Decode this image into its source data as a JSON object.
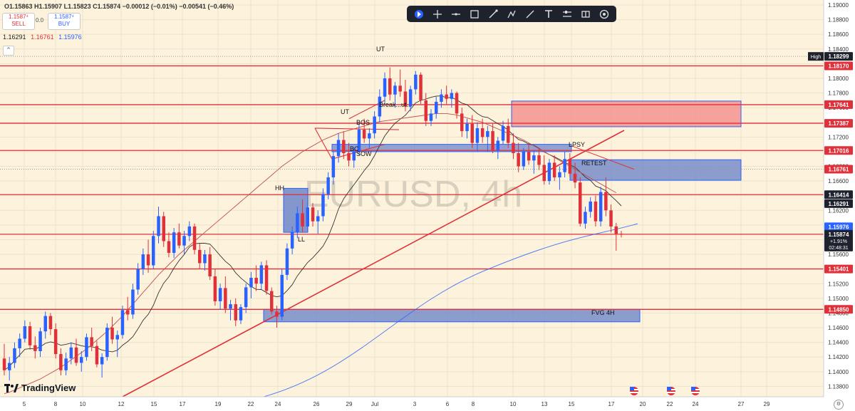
{
  "header": {
    "symbol_price": "1.1587⁴",
    "ohlc": "O1.15863 H1.15907 L1.15823 C1.15874 −0.00012 (−0.01%) −0.00541 (−0.46%)",
    "sell_price": "1.1587⁴",
    "sell_label": "SELL",
    "spread": "0.0",
    "buy_price": "1.1587⁴",
    "buy_label": "BUY",
    "ma_values": [
      "1.16291",
      "1.16761",
      "1.15976"
    ],
    "ma_colors": [
      "#222222",
      "#e0303a",
      "#2962ff"
    ],
    "collapse_glyph": "⌃"
  },
  "toolbar": {
    "icons": [
      "cursor-icon",
      "crosshair-icon",
      "horizontal-line-icon",
      "rectangle-icon",
      "brush-icon",
      "pen-icon",
      "trend-line-icon",
      "text-icon",
      "long-position-icon",
      "price-range-icon",
      "settings-icon"
    ]
  },
  "watermark": "EURUSD, 4h",
  "logo_text": "TradingView",
  "colors": {
    "background": "#fdf3dc",
    "bull": "#2962ff",
    "bear": "#e0303a",
    "level_line": "#e0303a",
    "zone_blue": "#6f86c9",
    "zone_red": "#f28c8c"
  },
  "chart_data": {
    "type": "candlestick",
    "symbol": "EURUSD",
    "timeframe": "4h",
    "ylim": [
      1.136,
      1.19
    ],
    "y_ticks": [
      "1.19000",
      "1.18800",
      "1.18600",
      "1.18400",
      "1.18200",
      "1.18000",
      "1.17800",
      "1.17600",
      "1.17400",
      "1.17200",
      "1.17000",
      "1.16800",
      "1.16600",
      "1.16400",
      "1.16200",
      "1.16000",
      "1.15800",
      "1.15600",
      "1.15400",
      "1.15200",
      "1.15000",
      "1.14800",
      "1.14600",
      "1.14400",
      "1.14200",
      "1.14000",
      "1.13800"
    ],
    "x_ticks": [
      "5",
      "8",
      "10",
      "12",
      "15",
      "17",
      "19",
      "22",
      "24",
      "26",
      "29",
      "Jul",
      "3",
      "6",
      "8",
      "10",
      "13",
      "15",
      "17",
      "20",
      "22",
      "24",
      "27",
      "29"
    ],
    "price_labels": [
      {
        "label": "High",
        "value": "1.18299"
      },
      {
        "value": "1.18170"
      },
      {
        "value": "1.17641"
      },
      {
        "value": "1.17387"
      },
      {
        "value": "1.17016"
      },
      {
        "value": "1.16761"
      },
      {
        "value": "1.16414"
      },
      {
        "value": "1.16291"
      },
      {
        "value": "1.15976"
      },
      {
        "value": "1.15874",
        "sub": [
          "+1.91%",
          "02:48:31"
        ]
      },
      {
        "value": "1.15401"
      },
      {
        "value": "1.14850"
      }
    ],
    "horizontal_levels": [
      1.1817,
      1.17641,
      1.17387,
      1.17016,
      1.16414,
      1.15874,
      1.15401,
      1.1485
    ],
    "dotted_levels": [
      1.18299,
      1.16761
    ],
    "annotations": [
      "UT",
      "Break...ut...",
      "UT",
      "BOS",
      "BC",
      "SOW",
      "HH",
      "LL",
      "LPSY",
      "RETEST",
      "FVG 4H"
    ],
    "ohlc": [
      [
        1.1418,
        1.1438,
        1.1395,
        1.1402
      ],
      [
        1.1402,
        1.142,
        1.1388,
        1.1412
      ],
      [
        1.1412,
        1.144,
        1.1405,
        1.1432
      ],
      [
        1.1432,
        1.1452,
        1.142,
        1.1445
      ],
      [
        1.1445,
        1.147,
        1.144,
        1.1462
      ],
      [
        1.1462,
        1.1468,
        1.143,
        1.1436
      ],
      [
        1.1436,
        1.1448,
        1.1418,
        1.1428
      ],
      [
        1.1428,
        1.146,
        1.142,
        1.1455
      ],
      [
        1.1455,
        1.1482,
        1.1445,
        1.1476
      ],
      [
        1.1476,
        1.148,
        1.145,
        1.1458
      ],
      [
        1.1458,
        1.1466,
        1.1418,
        1.1424
      ],
      [
        1.1424,
        1.1432,
        1.1395,
        1.1402
      ],
      [
        1.1402,
        1.1426,
        1.1395,
        1.1418
      ],
      [
        1.1418,
        1.144,
        1.141,
        1.1433
      ],
      [
        1.1433,
        1.1445,
        1.1408,
        1.1412
      ],
      [
        1.1412,
        1.1428,
        1.14,
        1.142
      ],
      [
        1.142,
        1.1452,
        1.1415,
        1.1447
      ],
      [
        1.1447,
        1.146,
        1.1428,
        1.1435
      ],
      [
        1.1435,
        1.1442,
        1.1406,
        1.141
      ],
      [
        1.141,
        1.1425,
        1.1392,
        1.142
      ],
      [
        1.142,
        1.1466,
        1.1415,
        1.146
      ],
      [
        1.146,
        1.1475,
        1.1438,
        1.1444
      ],
      [
        1.1444,
        1.1456,
        1.142,
        1.145
      ],
      [
        1.145,
        1.149,
        1.1445,
        1.1484
      ],
      [
        1.1484,
        1.1502,
        1.147,
        1.1478
      ],
      [
        1.1478,
        1.152,
        1.1472,
        1.1512
      ],
      [
        1.1512,
        1.1548,
        1.1505,
        1.154
      ],
      [
        1.154,
        1.1568,
        1.1532,
        1.156
      ],
      [
        1.156,
        1.158,
        1.1535,
        1.1545
      ],
      [
        1.1545,
        1.1592,
        1.154,
        1.1585
      ],
      [
        1.1585,
        1.1625,
        1.1575,
        1.1612
      ],
      [
        1.1612,
        1.1618,
        1.157,
        1.1578
      ],
      [
        1.1578,
        1.159,
        1.1556,
        1.1562
      ],
      [
        1.1562,
        1.1596,
        1.1555,
        1.159
      ],
      [
        1.159,
        1.1602,
        1.1568,
        1.1572
      ],
      [
        1.1572,
        1.1592,
        1.156,
        1.1585
      ],
      [
        1.1585,
        1.1605,
        1.1578,
        1.1598
      ],
      [
        1.1598,
        1.1602,
        1.156,
        1.1566
      ],
      [
        1.1566,
        1.1575,
        1.154,
        1.1548
      ],
      [
        1.1548,
        1.1566,
        1.1538,
        1.156
      ],
      [
        1.156,
        1.157,
        1.1525,
        1.153
      ],
      [
        1.153,
        1.154,
        1.149,
        1.1496
      ],
      [
        1.1496,
        1.152,
        1.1485,
        1.1514
      ],
      [
        1.1514,
        1.153,
        1.148,
        1.1486
      ],
      [
        1.1486,
        1.1498,
        1.147,
        1.1492
      ],
      [
        1.1492,
        1.15,
        1.1462,
        1.147
      ],
      [
        1.147,
        1.1492,
        1.1465,
        1.1488
      ],
      [
        1.1488,
        1.152,
        1.148,
        1.1515
      ],
      [
        1.1515,
        1.1536,
        1.15,
        1.1528
      ],
      [
        1.1528,
        1.1545,
        1.151,
        1.152
      ],
      [
        1.152,
        1.155,
        1.1512,
        1.1545
      ],
      [
        1.1545,
        1.1552,
        1.1505,
        1.151
      ],
      [
        1.151,
        1.1515,
        1.1478,
        1.1482
      ],
      [
        1.1482,
        1.149,
        1.146,
        1.1475
      ],
      [
        1.1475,
        1.154,
        1.147,
        1.1532
      ],
      [
        1.1532,
        1.1575,
        1.1525,
        1.1568
      ],
      [
        1.1568,
        1.1598,
        1.156,
        1.159
      ],
      [
        1.159,
        1.1625,
        1.1582,
        1.1616
      ],
      [
        1.1616,
        1.1635,
        1.159,
        1.1598
      ],
      [
        1.1598,
        1.1632,
        1.1592,
        1.1624
      ],
      [
        1.1624,
        1.163,
        1.1598,
        1.1605
      ],
      [
        1.1605,
        1.162,
        1.1588,
        1.1612
      ],
      [
        1.1612,
        1.165,
        1.1605,
        1.1642
      ],
      [
        1.1642,
        1.1672,
        1.1635,
        1.1665
      ],
      [
        1.1665,
        1.17,
        1.1655,
        1.1694
      ],
      [
        1.1694,
        1.1725,
        1.1685,
        1.1716
      ],
      [
        1.1716,
        1.1728,
        1.169,
        1.1698
      ],
      [
        1.1698,
        1.1712,
        1.168,
        1.1688
      ],
      [
        1.1688,
        1.1705,
        1.1678,
        1.17
      ],
      [
        1.17,
        1.1738,
        1.1695,
        1.173
      ],
      [
        1.173,
        1.1745,
        1.1712,
        1.1718
      ],
      [
        1.1718,
        1.1732,
        1.1705,
        1.1725
      ],
      [
        1.1725,
        1.1755,
        1.1718,
        1.1748
      ],
      [
        1.1748,
        1.1785,
        1.174,
        1.1775
      ],
      [
        1.1775,
        1.1808,
        1.1765,
        1.18
      ],
      [
        1.18,
        1.1815,
        1.177,
        1.1778
      ],
      [
        1.1778,
        1.1795,
        1.176,
        1.179
      ],
      [
        1.179,
        1.1812,
        1.1775,
        1.1782
      ],
      [
        1.1782,
        1.1798,
        1.1755,
        1.1762
      ],
      [
        1.1762,
        1.179,
        1.1755,
        1.1785
      ],
      [
        1.1785,
        1.181,
        1.1778,
        1.1805
      ],
      [
        1.1805,
        1.1808,
        1.1765,
        1.177
      ],
      [
        1.177,
        1.178,
        1.1735,
        1.1742
      ],
      [
        1.1742,
        1.1758,
        1.1735,
        1.1752
      ],
      [
        1.1752,
        1.1775,
        1.1745,
        1.1768
      ],
      [
        1.1768,
        1.1785,
        1.176,
        1.1778
      ],
      [
        1.1778,
        1.179,
        1.1765,
        1.1772
      ],
      [
        1.1772,
        1.1785,
        1.176,
        1.178
      ],
      [
        1.178,
        1.1782,
        1.1745,
        1.1752
      ],
      [
        1.1752,
        1.176,
        1.172,
        1.1728
      ],
      [
        1.1728,
        1.1745,
        1.1718,
        1.1738
      ],
      [
        1.1738,
        1.175,
        1.1705,
        1.1712
      ],
      [
        1.1712,
        1.174,
        1.17,
        1.1732
      ],
      [
        1.1732,
        1.1745,
        1.1712,
        1.172
      ],
      [
        1.172,
        1.1735,
        1.17,
        1.1728
      ],
      [
        1.1728,
        1.1738,
        1.1698,
        1.1702
      ],
      [
        1.1702,
        1.172,
        1.169,
        1.1715
      ],
      [
        1.1715,
        1.1742,
        1.171,
        1.1735
      ],
      [
        1.1735,
        1.1745,
        1.1705,
        1.1712
      ],
      [
        1.1712,
        1.1725,
        1.169,
        1.1698
      ],
      [
        1.1698,
        1.1712,
        1.1672,
        1.168
      ],
      [
        1.168,
        1.1705,
        1.1675,
        1.17
      ],
      [
        1.17,
        1.1712,
        1.1682,
        1.1688
      ],
      [
        1.1688,
        1.1702,
        1.167,
        1.1695
      ],
      [
        1.1695,
        1.1705,
        1.1675,
        1.1682
      ],
      [
        1.1682,
        1.1695,
        1.1655,
        1.166
      ],
      [
        1.166,
        1.169,
        1.1655,
        1.1685
      ],
      [
        1.1685,
        1.1695,
        1.166,
        1.1665
      ],
      [
        1.1665,
        1.168,
        1.1648,
        1.1672
      ],
      [
        1.1672,
        1.17,
        1.1665,
        1.169
      ],
      [
        1.169,
        1.1698,
        1.1665,
        1.167
      ],
      [
        1.167,
        1.1685,
        1.165,
        1.1658
      ],
      [
        1.1658,
        1.1665,
        1.1598,
        1.1602
      ],
      [
        1.1602,
        1.1625,
        1.1595,
        1.1618
      ],
      [
        1.1618,
        1.1638,
        1.161,
        1.1632
      ],
      [
        1.1632,
        1.164,
        1.1598,
        1.1605
      ],
      [
        1.1605,
        1.1652,
        1.1598,
        1.1645
      ],
      [
        1.1645,
        1.1665,
        1.1612,
        1.162
      ],
      [
        1.162,
        1.1628,
        1.159,
        1.1598
      ],
      [
        1.1598,
        1.1603,
        1.1565,
        1.1588
      ],
      [
        1.1588,
        1.1592,
        1.1583,
        1.1587
      ]
    ],
    "sma_50": [
      1.137,
      1.1372,
      1.1375,
      1.1378,
      1.1381,
      1.1384,
      1.1387,
      1.139,
      1.1394,
      1.1398,
      1.1402,
      1.1406,
      1.1411,
      1.1416,
      1.1421,
      1.1426,
      1.1431,
      1.1437,
      1.1443,
      1.1449,
      1.1455,
      1.1462,
      1.1469,
      1.1476,
      1.1484,
      1.1492,
      1.15,
      1.1508,
      1.1516,
      1.1524,
      1.1532,
      1.1539,
      1.1546,
      1.1553,
      1.156,
      1.1566,
      1.1572,
      1.1578,
      1.1584,
      1.159,
      1.1596,
      1.1602,
      1.1608,
      1.1614,
      1.162,
      1.1626,
      1.1632,
      1.1638,
      1.1644,
      1.165,
      1.1656,
      1.1662,
      1.1668,
      1.1674,
      1.168,
      1.1685,
      1.169,
      1.1695,
      1.17,
      1.1704,
      1.1708,
      1.1712,
      1.1716,
      1.1719,
      1.1722,
      1.1725,
      1.1727,
      1.1729,
      1.1731,
      1.1733,
      1.1735,
      1.1737,
      1.1739,
      1.1741,
      1.1742,
      1.1743,
      1.1744,
      1.1745,
      1.1746,
      1.1747,
      1.1748,
      1.1749,
      1.175,
      1.1751,
      1.1752,
      1.1752,
      1.1752,
      1.1751,
      1.175,
      1.1748,
      1.1746,
      1.1744,
      1.1742,
      1.174,
      1.1737,
      1.1734,
      1.1731,
      1.1728,
      1.1725,
      1.1722,
      1.1719,
      1.1716,
      1.1712,
      1.1708,
      1.1704,
      1.17,
      1.1696,
      1.1692,
      1.1688,
      1.1684,
      1.168,
      1.1676,
      1.1672,
      1.1668,
      1.1664,
      1.166,
      1.1656,
      1.1652,
      1.1648,
      1.1644
    ]
  }
}
